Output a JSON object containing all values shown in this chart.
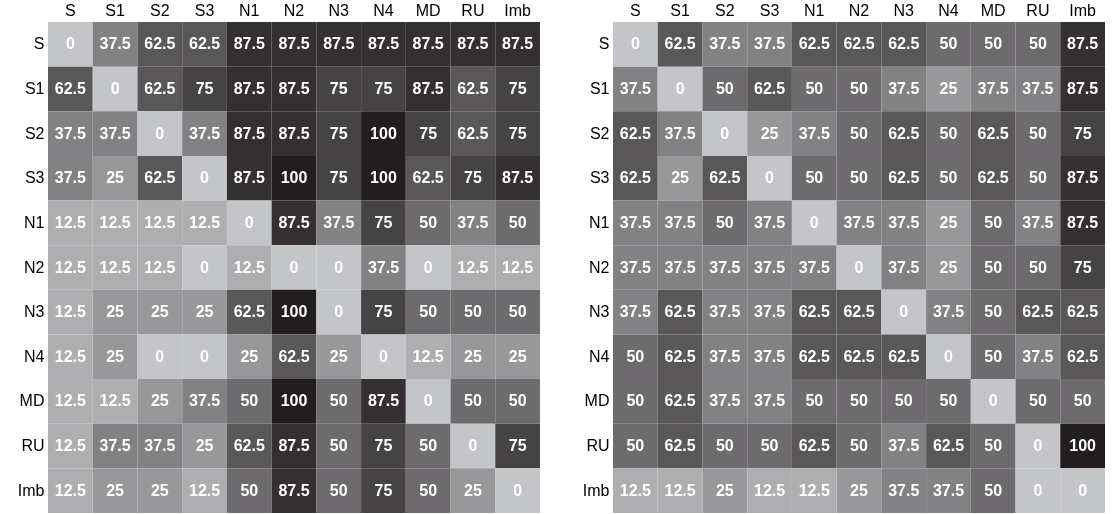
{
  "chart_data": [
    {
      "type": "heatmap",
      "categories": [
        "S",
        "S1",
        "S2",
        "S3",
        "N1",
        "N2",
        "N3",
        "N4",
        "MD",
        "RU",
        "Imb"
      ],
      "y_categories": [
        "S",
        "S1",
        "S2",
        "S3",
        "N1",
        "N2",
        "N3",
        "N4",
        "MD",
        "RU",
        "Imb"
      ],
      "data_labels": true,
      "colors": [
        "#c4c5c8",
        "#221e1f"
      ],
      "cells": [
        [
          0,
          37.5,
          62.5,
          62.5,
          87.5,
          87.5,
          87.5,
          87.5,
          87.5,
          87.5,
          87.5
        ],
        [
          62.5,
          0,
          62.5,
          75,
          87.5,
          87.5,
          75,
          75,
          87.5,
          62.5,
          75
        ],
        [
          37.5,
          37.5,
          0,
          37.5,
          87.5,
          87.5,
          75,
          100,
          75,
          62.5,
          75
        ],
        [
          37.5,
          25,
          62.5,
          0,
          87.5,
          100,
          75,
          100,
          62.5,
          75,
          87.5
        ],
        [
          12.5,
          12.5,
          12.5,
          12.5,
          0,
          87.5,
          37.5,
          75,
          50,
          37.5,
          50
        ],
        [
          12.5,
          12.5,
          12.5,
          0,
          12.5,
          0,
          0,
          37.5,
          0,
          12.5,
          12.5
        ],
        [
          12.5,
          25,
          25,
          25,
          62.5,
          100,
          0,
          75,
          50,
          50,
          50
        ],
        [
          12.5,
          25,
          0,
          0,
          25,
          62.5,
          25,
          0,
          12.5,
          25,
          25
        ],
        [
          12.5,
          12.5,
          25,
          37.5,
          50,
          100,
          50,
          87.5,
          0,
          50,
          50
        ],
        [
          12.5,
          37.5,
          37.5,
          25,
          62.5,
          87.5,
          50,
          75,
          50,
          0,
          75
        ],
        [
          12.5,
          25,
          25,
          12.5,
          50,
          87.5,
          50,
          75,
          50,
          25,
          0
        ]
      ]
    },
    {
      "type": "heatmap",
      "categories": [
        "S",
        "S1",
        "S2",
        "S3",
        "N1",
        "N2",
        "N3",
        "N4",
        "MD",
        "RU",
        "Imb"
      ],
      "y_categories": [
        "S",
        "S1",
        "S2",
        "S3",
        "N1",
        "N2",
        "N3",
        "N4",
        "MD",
        "RU",
        "Imb"
      ],
      "data_labels": true,
      "colors": [
        "#c4c5c8",
        "#221e1f"
      ],
      "cells": [
        [
          0,
          62.5,
          37.5,
          37.5,
          62.5,
          62.5,
          62.5,
          50,
          50,
          50,
          87.5
        ],
        [
          37.5,
          0,
          50,
          62.5,
          50,
          50,
          37.5,
          25,
          37.5,
          37.5,
          87.5
        ],
        [
          62.5,
          37.5,
          0,
          25,
          37.5,
          50,
          62.5,
          50,
          62.5,
          50,
          75
        ],
        [
          62.5,
          25,
          62.5,
          0,
          50,
          50,
          62.5,
          50,
          62.5,
          50,
          87.5
        ],
        [
          37.5,
          37.5,
          50,
          37.5,
          0,
          37.5,
          37.5,
          25,
          50,
          37.5,
          87.5
        ],
        [
          37.5,
          37.5,
          37.5,
          37.5,
          37.5,
          0,
          37.5,
          25,
          50,
          50,
          75
        ],
        [
          37.5,
          62.5,
          37.5,
          37.5,
          62.5,
          62.5,
          0,
          37.5,
          50,
          62.5,
          62.5
        ],
        [
          50,
          62.5,
          37.5,
          37.5,
          62.5,
          62.5,
          62.5,
          0,
          50,
          37.5,
          62.5
        ],
        [
          50,
          62.5,
          37.5,
          37.5,
          50,
          50,
          50,
          50,
          0,
          50,
          50
        ],
        [
          50,
          62.5,
          50,
          50,
          62.5,
          50,
          37.5,
          62.5,
          50,
          0,
          100
        ],
        [
          12.5,
          12.5,
          25,
          12.5,
          12.5,
          25,
          37.5,
          37.5,
          50,
          0,
          0
        ]
      ]
    }
  ]
}
